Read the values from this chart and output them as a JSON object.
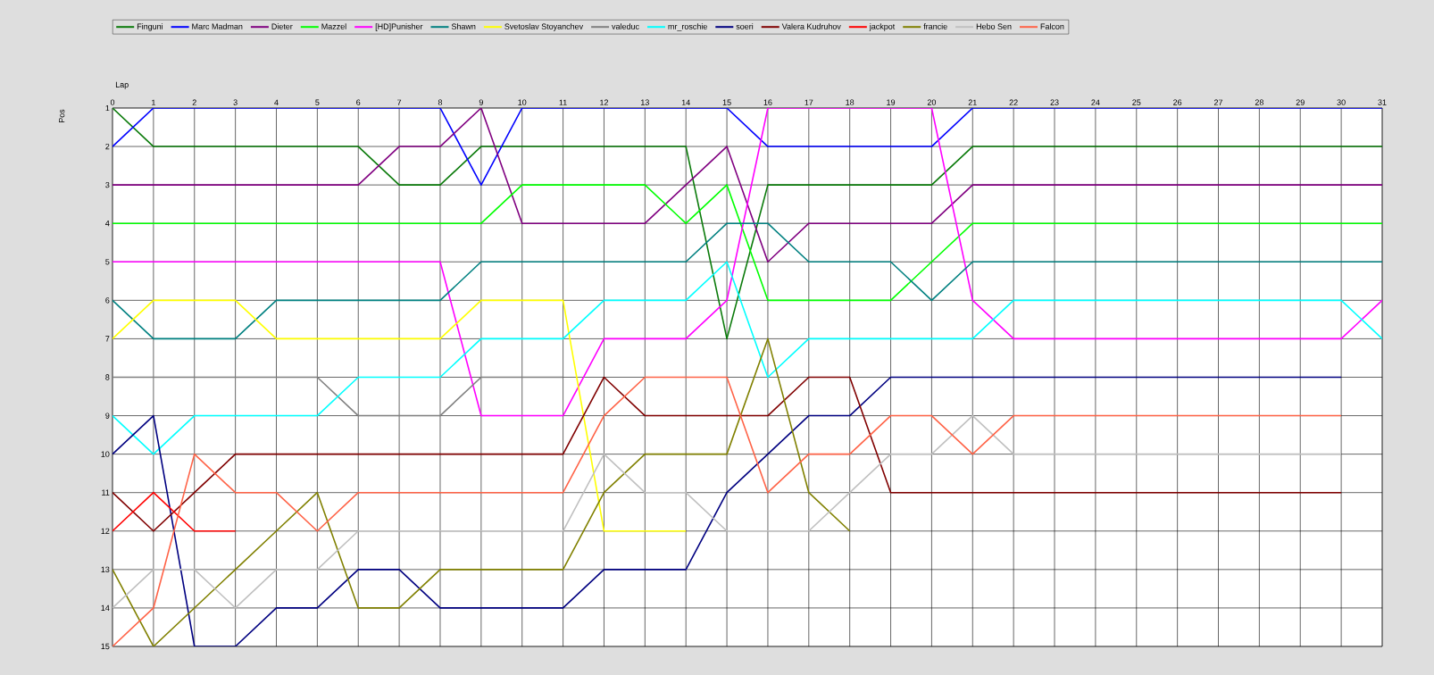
{
  "chart_data": {
    "type": "line",
    "xlabel": "Lap",
    "ylabel": "Pos",
    "x": [
      0,
      1,
      2,
      3,
      4,
      5,
      6,
      7,
      8,
      9,
      10,
      11,
      12,
      13,
      14,
      15,
      16,
      17,
      18,
      19,
      20,
      21,
      22,
      23,
      24,
      25,
      26,
      27,
      28,
      29,
      30,
      31
    ],
    "xlim": [
      0,
      31
    ],
    "xticks": [
      0,
      1,
      2,
      3,
      4,
      5,
      6,
      7,
      8,
      9,
      10,
      11,
      12,
      13,
      14,
      15,
      16,
      17,
      18,
      19,
      20,
      21,
      22,
      23,
      24,
      25,
      26,
      27,
      28,
      29,
      30,
      31
    ],
    "ylim": [
      15,
      1
    ],
    "yticks": [
      1,
      2,
      3,
      4,
      5,
      6,
      7,
      8,
      9,
      10,
      11,
      12,
      13,
      14,
      15
    ],
    "grid": true,
    "legend": "top",
    "series": [
      {
        "name": "Finguni",
        "color": "#0a7a0a",
        "values": [
          1,
          2,
          2,
          2,
          2,
          2,
          2,
          3,
          3,
          2,
          2,
          2,
          2,
          2,
          2,
          7,
          3,
          3,
          3,
          3,
          3,
          2,
          2,
          2,
          2,
          2,
          2,
          2,
          2,
          2,
          2,
          2
        ]
      },
      {
        "name": "Marc Madman",
        "color": "#0000ff",
        "values": [
          2,
          1,
          1,
          1,
          1,
          1,
          1,
          1,
          1,
          3,
          1,
          1,
          1,
          1,
          1,
          1,
          2,
          2,
          2,
          2,
          2,
          1,
          1,
          1,
          1,
          1,
          1,
          1,
          1,
          1,
          1,
          1
        ]
      },
      {
        "name": "Dieter",
        "color": "#800080",
        "values": [
          3,
          3,
          3,
          3,
          3,
          3,
          3,
          2,
          2,
          1,
          4,
          4,
          4,
          4,
          3,
          2,
          5,
          4,
          4,
          4,
          4,
          3,
          3,
          3,
          3,
          3,
          3,
          3,
          3,
          3,
          3,
          3
        ]
      },
      {
        "name": "Mazzel",
        "color": "#00ff00",
        "values": [
          4,
          4,
          4,
          4,
          4,
          4,
          4,
          4,
          4,
          4,
          3,
          3,
          3,
          3,
          4,
          3,
          6,
          6,
          6,
          6,
          5,
          4,
          4,
          4,
          4,
          4,
          4,
          4,
          4,
          4,
          4,
          4
        ]
      },
      {
        "name": "[HD]Punisher",
        "color": "#ff00ff",
        "values": [
          5,
          5,
          5,
          5,
          5,
          5,
          5,
          5,
          5,
          9,
          9,
          9,
          7,
          7,
          7,
          6,
          1,
          1,
          1,
          1,
          1,
          6,
          7,
          7,
          7,
          7,
          7,
          7,
          7,
          7,
          7,
          6
        ]
      },
      {
        "name": "Shawn",
        "color": "#008080",
        "values": [
          6,
          7,
          7,
          7,
          6,
          6,
          6,
          6,
          6,
          5,
          5,
          5,
          5,
          5,
          5,
          4,
          4,
          5,
          5,
          5,
          6,
          5,
          5,
          5,
          5,
          5,
          5,
          5,
          5,
          5,
          5,
          5
        ]
      },
      {
        "name": "Svetoslav Stoyanchev",
        "color": "#ffff00",
        "values": [
          7,
          6,
          6,
          6,
          7,
          7,
          7,
          7,
          7,
          6,
          6,
          6,
          12,
          12,
          12,
          null,
          null,
          null,
          null,
          null,
          null,
          null,
          null,
          null,
          null,
          null,
          null,
          null,
          null,
          null,
          null,
          null
        ]
      },
      {
        "name": "valeduc",
        "color": "#808080",
        "values": [
          8,
          8,
          8,
          8,
          8,
          8,
          9,
          9,
          9,
          8,
          8,
          8,
          null,
          null,
          null,
          null,
          null,
          null,
          null,
          null,
          null,
          null,
          null,
          null,
          null,
          null,
          null,
          null,
          null,
          null,
          null,
          null
        ]
      },
      {
        "name": "mr_roschie",
        "color": "#00ffff",
        "values": [
          9,
          10,
          9,
          9,
          9,
          9,
          8,
          8,
          8,
          7,
          7,
          7,
          6,
          6,
          6,
          5,
          8,
          7,
          7,
          7,
          7,
          7,
          6,
          6,
          6,
          6,
          6,
          6,
          6,
          6,
          6,
          7
        ]
      },
      {
        "name": "soeri",
        "color": "#000080",
        "values": [
          10,
          9,
          15,
          15,
          14,
          14,
          13,
          13,
          14,
          14,
          14,
          14,
          13,
          13,
          13,
          11,
          10,
          9,
          9,
          8,
          8,
          8,
          8,
          8,
          8,
          8,
          8,
          8,
          8,
          8,
          8,
          null
        ]
      },
      {
        "name": "Valera Kudruhov",
        "color": "#800000",
        "values": [
          11,
          12,
          11,
          10,
          10,
          10,
          10,
          10,
          10,
          10,
          10,
          10,
          8,
          9,
          9,
          9,
          9,
          8,
          8,
          11,
          11,
          11,
          11,
          11,
          11,
          11,
          11,
          11,
          11,
          11,
          11,
          null
        ]
      },
      {
        "name": "jackpot",
        "color": "#ff0000",
        "values": [
          12,
          11,
          12,
          12,
          null,
          null,
          null,
          null,
          null,
          null,
          null,
          null,
          null,
          null,
          null,
          null,
          null,
          null,
          null,
          null,
          null,
          null,
          null,
          null,
          null,
          null,
          null,
          null,
          null,
          null,
          null,
          null
        ]
      },
      {
        "name": "francie",
        "color": "#808000",
        "values": [
          13,
          15,
          14,
          13,
          12,
          11,
          14,
          14,
          13,
          13,
          13,
          13,
          11,
          10,
          10,
          10,
          7,
          11,
          12,
          null,
          null,
          null,
          null,
          null,
          null,
          null,
          null,
          null,
          null,
          null,
          null,
          null
        ]
      },
      {
        "name": "Hebo Sen",
        "color": "#c0c0c0",
        "values": [
          14,
          13,
          13,
          14,
          13,
          13,
          12,
          12,
          12,
          12,
          12,
          12,
          10,
          11,
          11,
          12,
          12,
          12,
          11,
          10,
          10,
          9,
          10,
          10,
          10,
          10,
          10,
          10,
          10,
          10,
          10,
          null
        ]
      },
      {
        "name": "Falcon",
        "color": "#ff6347",
        "values": [
          15,
          14,
          10,
          11,
          11,
          12,
          11,
          11,
          11,
          11,
          11,
          11,
          9,
          8,
          8,
          8,
          11,
          10,
          10,
          9,
          9,
          10,
          9,
          9,
          9,
          9,
          9,
          9,
          9,
          9,
          9,
          null
        ]
      }
    ]
  }
}
